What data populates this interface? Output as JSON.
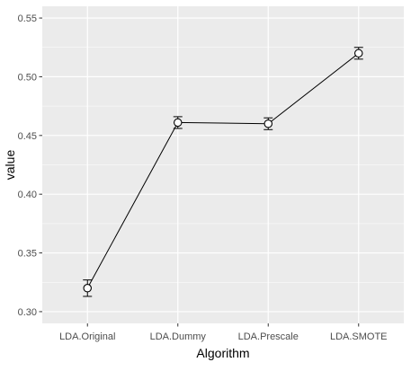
{
  "chart_data": {
    "type": "line",
    "title": "",
    "xlabel": "Algorithm",
    "ylabel": "value",
    "categories": [
      "LDA.Original",
      "LDA.Dummy",
      "LDA.Prescale",
      "LDA.SMOTE"
    ],
    "series": [
      {
        "values": [
          0.32,
          0.461,
          0.46,
          0.52
        ],
        "error_low": [
          0.313,
          0.456,
          0.455,
          0.515
        ],
        "error_high": [
          0.327,
          0.466,
          0.465,
          0.525
        ]
      }
    ],
    "ylim": [
      0.29,
      0.56
    ],
    "yticks": [
      0.3,
      0.35,
      0.4,
      0.45,
      0.5,
      0.55
    ],
    "ytick_labels": [
      "0.30",
      "0.35",
      "0.40",
      "0.45",
      "0.50",
      "0.55"
    ],
    "grid": true,
    "legend": "none",
    "colors": {
      "panel_background": "#ebebeb",
      "grid_major": "#ffffff",
      "line": "#000000",
      "point_fill": "#ffffff",
      "point_stroke": "#000000",
      "tick_label": "#4d4d4d",
      "axis_title": "#000000"
    }
  }
}
